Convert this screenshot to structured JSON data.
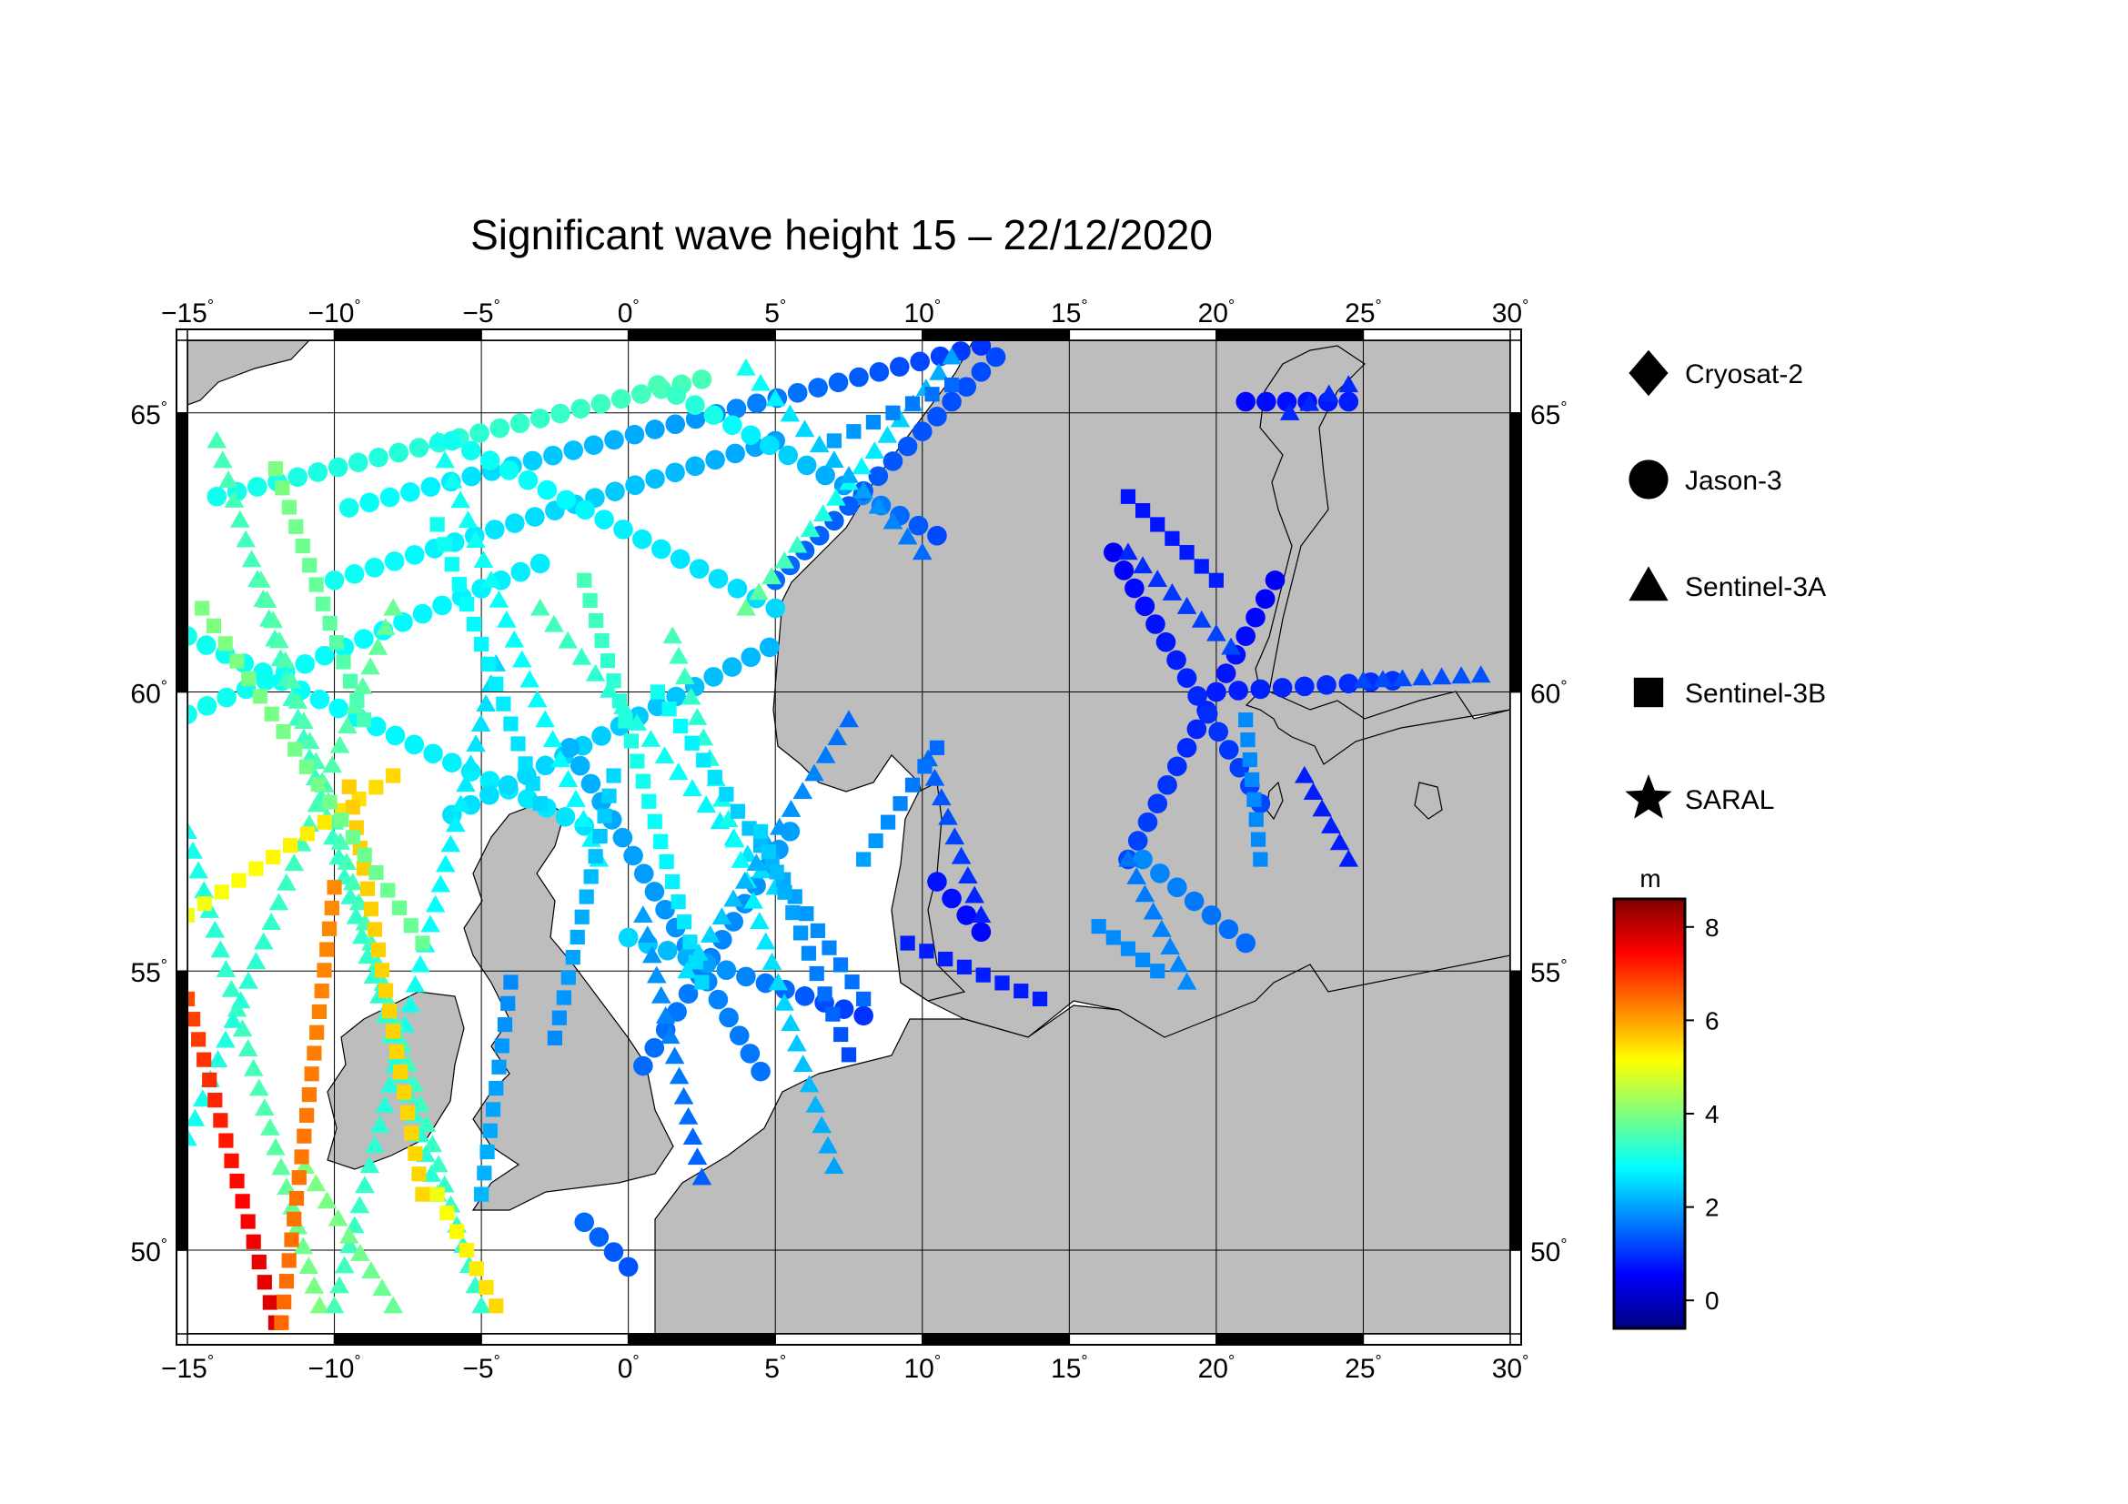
{
  "title": "Significant wave height 15 – 22/12/2020",
  "map": {
    "lon_range": [
      -15,
      30
    ],
    "lat_range": [
      48.5,
      66.3
    ],
    "lon_ticks": [
      {
        "value": -15,
        "label": "−15"
      },
      {
        "value": -10,
        "label": "−10"
      },
      {
        "value": -5,
        "label": "−5"
      },
      {
        "value": 0,
        "label": "0"
      },
      {
        "value": 5,
        "label": "5"
      },
      {
        "value": 10,
        "label": "10"
      },
      {
        "value": 15,
        "label": "15"
      },
      {
        "value": 20,
        "label": "20"
      },
      {
        "value": 25,
        "label": "25"
      },
      {
        "value": 30,
        "label": "30"
      }
    ],
    "lat_ticks": [
      {
        "value": 50,
        "label": "50"
      },
      {
        "value": 55,
        "label": "55"
      },
      {
        "value": 60,
        "label": "60"
      },
      {
        "value": 65,
        "label": "65"
      }
    ],
    "degree_symbol": "°",
    "grid": true,
    "land_color": "#bdbdbd",
    "sea_color": "#ffffff"
  },
  "legend": {
    "items": [
      {
        "name": "Cryosat-2",
        "symbol": "diamond-icon"
      },
      {
        "name": "Jason-3",
        "symbol": "circle-icon"
      },
      {
        "name": "Sentinel-3A",
        "symbol": "triangle-icon"
      },
      {
        "name": "Sentinel-3B",
        "symbol": "square-icon"
      },
      {
        "name": "SARAL",
        "symbol": "star-icon"
      }
    ]
  },
  "colorbar": {
    "unit": "m",
    "min": -0.6,
    "max": 8.6,
    "ticks": [
      {
        "value": 0,
        "label": "0"
      },
      {
        "value": 2,
        "label": "2"
      },
      {
        "value": 4,
        "label": "4"
      },
      {
        "value": 6,
        "label": "6"
      },
      {
        "value": 8,
        "label": "8"
      }
    ],
    "colors": [
      "#00007f",
      "#0000ff",
      "#007fff",
      "#00ffff",
      "#7fff7f",
      "#ffff00",
      "#ff7f00",
      "#ff0000",
      "#7f0000"
    ]
  },
  "chart_data": {
    "type": "scatter",
    "title": "Significant wave height 15 – 22/12/2020",
    "value_unit": "m",
    "tracks": [
      {
        "satellite": "Jason-3",
        "start": [
          -15.0,
          61.0
        ],
        "end": [
          -1.5,
          57.6
        ],
        "hs": [
          3.0,
          2.6
        ]
      },
      {
        "satellite": "Jason-3",
        "start": [
          -15.0,
          59.6
        ],
        "end": [
          -3.0,
          62.3
        ],
        "hs": [
          3.0,
          2.7
        ]
      },
      {
        "satellite": "Jason-3",
        "start": [
          -9.5,
          63.3
        ],
        "end": [
          12.0,
          66.2
        ],
        "hs": [
          3.0,
          1.0
        ]
      },
      {
        "satellite": "Jason-3",
        "start": [
          -14.0,
          63.5
        ],
        "end": [
          2.5,
          65.6
        ],
        "hs": [
          3.0,
          3.5
        ]
      },
      {
        "satellite": "Jason-3",
        "start": [
          -10.0,
          62.0
        ],
        "end": [
          5.0,
          64.5
        ],
        "hs": [
          3.0,
          2.0
        ]
      },
      {
        "satellite": "Jason-3",
        "start": [
          -6.0,
          57.8
        ],
        "end": [
          4.8,
          60.8
        ],
        "hs": [
          2.6,
          2.2
        ]
      },
      {
        "satellite": "Jason-3",
        "start": [
          -2.0,
          59.0
        ],
        "end": [
          4.5,
          53.2
        ],
        "hs": [
          2.2,
          1.6
        ]
      },
      {
        "satellite": "Jason-3",
        "start": [
          0.5,
          53.3
        ],
        "end": [
          5.5,
          57.5
        ],
        "hs": [
          1.5,
          2.0
        ]
      },
      {
        "satellite": "Jason-3",
        "start": [
          0.0,
          55.6
        ],
        "end": [
          8.0,
          54.2
        ],
        "hs": [
          2.5,
          1.0
        ]
      },
      {
        "satellite": "Jason-3",
        "start": [
          1.0,
          65.5
        ],
        "end": [
          10.5,
          62.8
        ],
        "hs": [
          3.5,
          1.2
        ]
      },
      {
        "satellite": "Jason-3",
        "start": [
          -6.0,
          64.5
        ],
        "end": [
          5.0,
          61.5
        ],
        "hs": [
          3.0,
          2.5
        ]
      },
      {
        "satellite": "Jason-3",
        "start": [
          5.0,
          62.0
        ],
        "end": [
          12.5,
          66.0
        ],
        "hs": [
          1.5,
          1.2
        ]
      },
      {
        "satellite": "Jason-3",
        "start": [
          17.0,
          57.0
        ],
        "end": [
          22.0,
          62.0
        ],
        "hs": [
          1.2,
          0.5
        ]
      },
      {
        "satellite": "Jason-3",
        "start": [
          16.5,
          62.5
        ],
        "end": [
          21.5,
          58.0
        ],
        "hs": [
          0.5,
          1.2
        ]
      },
      {
        "satellite": "Jason-3",
        "start": [
          20.0,
          60.0
        ],
        "end": [
          26.0,
          60.2
        ],
        "hs": [
          0.8,
          1.0
        ]
      },
      {
        "satellite": "Jason-3",
        "start": [
          21.0,
          65.2
        ],
        "end": [
          24.5,
          65.2
        ],
        "hs": [
          0.6,
          0.8
        ]
      },
      {
        "satellite": "Jason-3",
        "start": [
          17.5,
          57.0
        ],
        "end": [
          21.0,
          55.5
        ],
        "hs": [
          1.8,
          1.5
        ]
      },
      {
        "satellite": "Jason-3",
        "start": [
          10.5,
          56.6
        ],
        "end": [
          12.0,
          55.7
        ],
        "hs": [
          0.7,
          0.6
        ]
      },
      {
        "satellite": "Jason-3",
        "start": [
          -1.5,
          50.5
        ],
        "end": [
          0.0,
          49.7
        ],
        "hs": [
          1.5,
          1.3
        ]
      },
      {
        "satellite": "Sentinel-3A",
        "start": [
          -15.0,
          57.5
        ],
        "end": [
          -10.5,
          49.0
        ],
        "hs": [
          3.0,
          4.0
        ]
      },
      {
        "satellite": "Sentinel-3A",
        "start": [
          -14.0,
          64.5
        ],
        "end": [
          -6.5,
          51.0
        ],
        "hs": [
          3.5,
          3.2
        ]
      },
      {
        "satellite": "Sentinel-3A",
        "start": [
          -15.0,
          52.0
        ],
        "end": [
          -8.0,
          61.5
        ],
        "hs": [
          3.0,
          3.8
        ]
      },
      {
        "satellite": "Sentinel-3A",
        "start": [
          -10.0,
          49.0
        ],
        "end": [
          -4.5,
          60.5
        ],
        "hs": [
          3.5,
          2.5
        ]
      },
      {
        "satellite": "Sentinel-3A",
        "start": [
          -12.5,
          62.0
        ],
        "end": [
          -5.0,
          49.0
        ],
        "hs": [
          3.6,
          3.3
        ]
      },
      {
        "satellite": "Sentinel-3A",
        "start": [
          -6.5,
          64.5
        ],
        "end": [
          -1.0,
          57.0
        ],
        "hs": [
          3.0,
          2.8
        ]
      },
      {
        "satellite": "Sentinel-3A",
        "start": [
          -3.0,
          61.5
        ],
        "end": [
          5.0,
          56.5
        ],
        "hs": [
          3.5,
          2.5
        ]
      },
      {
        "satellite": "Sentinel-3A",
        "start": [
          1.5,
          61.0
        ],
        "end": [
          7.0,
          51.5
        ],
        "hs": [
          3.5,
          2.0
        ]
      },
      {
        "satellite": "Sentinel-3A",
        "start": [
          2.0,
          55.0
        ],
        "end": [
          7.5,
          59.5
        ],
        "hs": [
          2.6,
          1.5
        ]
      },
      {
        "satellite": "Sentinel-3A",
        "start": [
          0.5,
          56.0
        ],
        "end": [
          2.5,
          51.3
        ],
        "hs": [
          2.0,
          1.4
        ]
      },
      {
        "satellite": "Sentinel-3A",
        "start": [
          4.0,
          61.5
        ],
        "end": [
          11.0,
          66.0
        ],
        "hs": [
          3.8,
          2.0
        ]
      },
      {
        "satellite": "Sentinel-3A",
        "start": [
          4.0,
          65.8
        ],
        "end": [
          10.0,
          62.5
        ],
        "hs": [
          3.0,
          1.5
        ]
      },
      {
        "satellite": "Sentinel-3A",
        "start": [
          10.2,
          58.8
        ],
        "end": [
          12.0,
          56.0
        ],
        "hs": [
          1.5,
          0.8
        ]
      },
      {
        "satellite": "Sentinel-3A",
        "start": [
          17.0,
          62.5
        ],
        "end": [
          20.5,
          60.8
        ],
        "hs": [
          0.9,
          1.2
        ]
      },
      {
        "satellite": "Sentinel-3A",
        "start": [
          17.0,
          57.0
        ],
        "end": [
          19.0,
          54.8
        ],
        "hs": [
          1.6,
          1.8
        ]
      },
      {
        "satellite": "Sentinel-3A",
        "start": [
          25.0,
          60.2
        ],
        "end": [
          29.0,
          60.3
        ],
        "hs": [
          1.2,
          1.3
        ]
      },
      {
        "satellite": "Sentinel-3A",
        "start": [
          23.0,
          58.5
        ],
        "end": [
          24.5,
          57.0
        ],
        "hs": [
          0.8,
          0.8
        ]
      },
      {
        "satellite": "Sentinel-3A",
        "start": [
          22.5,
          65.0
        ],
        "end": [
          24.5,
          65.5
        ],
        "hs": [
          0.9,
          0.9
        ]
      },
      {
        "satellite": "Sentinel-3A",
        "start": [
          -11.0,
          51.5
        ],
        "end": [
          -8.0,
          49.0
        ],
        "hs": [
          4.0,
          3.8
        ]
      },
      {
        "satellite": "Sentinel-3B",
        "start": [
          -15.0,
          54.5
        ],
        "end": [
          -12.0,
          48.7
        ],
        "hs": [
          6.8,
          7.8
        ]
      },
      {
        "satellite": "Sentinel-3B",
        "start": [
          -10.0,
          56.5
        ],
        "end": [
          -11.8,
          48.7
        ],
        "hs": [
          6.2,
          6.5
        ]
      },
      {
        "satellite": "Sentinel-3B",
        "start": [
          -15.0,
          56.0
        ],
        "end": [
          -8.0,
          58.5
        ],
        "hs": [
          5.0,
          5.5
        ]
      },
      {
        "satellite": "Sentinel-3B",
        "start": [
          -9.5,
          58.3
        ],
        "end": [
          -7.0,
          51.0
        ],
        "hs": [
          5.6,
          5.5
        ]
      },
      {
        "satellite": "Sentinel-3B",
        "start": [
          -6.5,
          51.0
        ],
        "end": [
          -4.5,
          49.0
        ],
        "hs": [
          5.0,
          5.5
        ]
      },
      {
        "satellite": "Sentinel-3B",
        "start": [
          -14.5,
          61.5
        ],
        "end": [
          -7.0,
          55.5
        ],
        "hs": [
          4.0,
          3.8
        ]
      },
      {
        "satellite": "Sentinel-3B",
        "start": [
          -12.0,
          64.0
        ],
        "end": [
          -9.0,
          59.5
        ],
        "hs": [
          4.0,
          3.5
        ]
      },
      {
        "satellite": "Sentinel-3B",
        "start": [
          -6.5,
          63.0
        ],
        "end": [
          -3.0,
          58.0
        ],
        "hs": [
          3.0,
          2.5
        ]
      },
      {
        "satellite": "Sentinel-3B",
        "start": [
          -1.5,
          62.0
        ],
        "end": [
          2.5,
          54.8
        ],
        "hs": [
          3.5,
          2.5
        ]
      },
      {
        "satellite": "Sentinel-3B",
        "start": [
          -0.5,
          58.5
        ],
        "end": [
          -2.5,
          53.8
        ],
        "hs": [
          2.5,
          1.8
        ]
      },
      {
        "satellite": "Sentinel-3B",
        "start": [
          1.0,
          60.0
        ],
        "end": [
          8.0,
          54.5
        ],
        "hs": [
          3.0,
          1.5
        ]
      },
      {
        "satellite": "Sentinel-3B",
        "start": [
          4.5,
          57.5
        ],
        "end": [
          7.5,
          53.5
        ],
        "hs": [
          2.5,
          1.2
        ]
      },
      {
        "satellite": "Sentinel-3B",
        "start": [
          8.0,
          57.0
        ],
        "end": [
          10.5,
          59.0
        ],
        "hs": [
          2.0,
          1.5
        ]
      },
      {
        "satellite": "Sentinel-3B",
        "start": [
          7.0,
          64.5
        ],
        "end": [
          11.0,
          65.5
        ],
        "hs": [
          2.0,
          1.5
        ]
      },
      {
        "satellite": "Sentinel-3B",
        "start": [
          -4.0,
          54.8
        ],
        "end": [
          -5.0,
          51.0
        ],
        "hs": [
          1.8,
          2.2
        ]
      },
      {
        "satellite": "Sentinel-3B",
        "start": [
          16.0,
          55.8
        ],
        "end": [
          18.0,
          55.0
        ],
        "hs": [
          1.8,
          1.8
        ]
      },
      {
        "satellite": "Sentinel-3B",
        "start": [
          21.0,
          59.5
        ],
        "end": [
          21.5,
          57.0
        ],
        "hs": [
          1.8,
          1.8
        ]
      },
      {
        "satellite": "Sentinel-3B",
        "start": [
          17.0,
          63.5
        ],
        "end": [
          20.0,
          62.0
        ],
        "hs": [
          0.7,
          0.8
        ]
      },
      {
        "satellite": "Sentinel-3B",
        "start": [
          9.5,
          55.5
        ],
        "end": [
          14.0,
          54.5
        ],
        "hs": [
          0.8,
          0.8
        ]
      }
    ],
    "marker_symbols": {
      "Cryosat-2": "diamond",
      "Jason-3": "circle",
      "Sentinel-3A": "triangle",
      "Sentinel-3B": "square",
      "SARAL": "star"
    }
  }
}
